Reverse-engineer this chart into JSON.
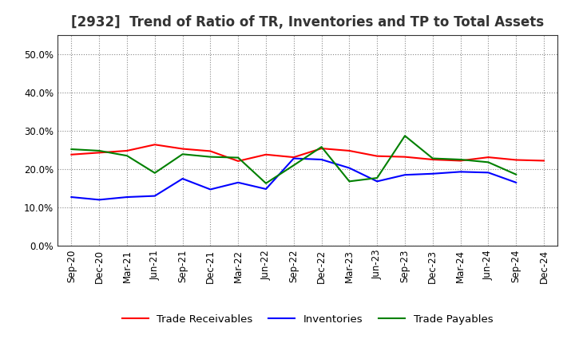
{
  "title": "[2932]  Trend of Ratio of TR, Inventories and TP to Total Assets",
  "x_labels": [
    "Sep-20",
    "Dec-20",
    "Mar-21",
    "Jun-21",
    "Sep-21",
    "Dec-21",
    "Mar-22",
    "Jun-22",
    "Sep-22",
    "Dec-22",
    "Mar-23",
    "Jun-23",
    "Sep-23",
    "Dec-23",
    "Mar-24",
    "Jun-24",
    "Sep-24",
    "Dec-24"
  ],
  "trade_receivables": [
    0.238,
    0.243,
    0.248,
    0.264,
    0.253,
    0.247,
    0.221,
    0.238,
    0.231,
    0.254,
    0.248,
    0.234,
    0.232,
    0.225,
    0.222,
    0.231,
    0.224,
    0.222
  ],
  "inventories": [
    0.127,
    0.12,
    0.127,
    0.13,
    0.175,
    0.147,
    0.165,
    0.148,
    0.228,
    0.225,
    0.203,
    0.168,
    0.185,
    0.188,
    0.193,
    0.191,
    0.165,
    null
  ],
  "trade_payables": [
    0.252,
    0.248,
    0.235,
    0.19,
    0.239,
    0.232,
    0.23,
    0.163,
    0.21,
    0.258,
    0.168,
    0.177,
    0.287,
    0.228,
    0.225,
    0.218,
    0.186,
    null
  ],
  "ylim": [
    0.0,
    0.55
  ],
  "yticks": [
    0.0,
    0.1,
    0.2,
    0.3,
    0.4,
    0.5
  ],
  "line_colors": {
    "trade_receivables": "#ff0000",
    "inventories": "#0000ff",
    "trade_payables": "#008000"
  },
  "legend_labels": [
    "Trade Receivables",
    "Inventories",
    "Trade Payables"
  ],
  "background_color": "#ffffff",
  "grid_color": "#888888",
  "title_fontsize": 12,
  "axis_fontsize": 8.5,
  "legend_fontsize": 9.5
}
